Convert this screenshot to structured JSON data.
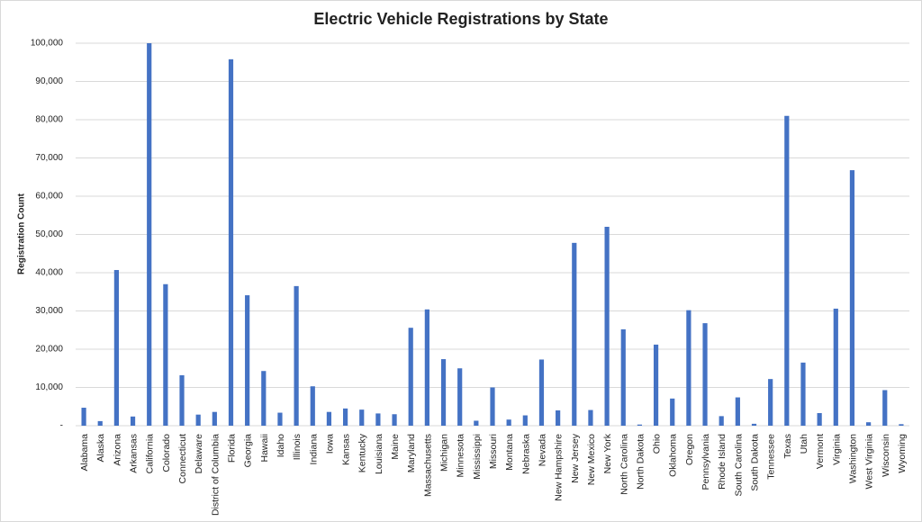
{
  "chart_data": {
    "type": "bar",
    "title": "Electric Vehicle Registrations by State",
    "y_label": "Registration Count",
    "categories": [
      "Alabama",
      "Alaska",
      "Arizona",
      "Arkansas",
      "California",
      "Colorado",
      "Connecticut",
      "Delaware",
      "District of Columbia",
      "Florida",
      "Georgia",
      "Hawaii",
      "Idaho",
      "Illinois",
      "Indiana",
      "Iowa",
      "Kansas",
      "Kentucky",
      "Louisiana",
      "Maine",
      "Maryland",
      "Massachusetts",
      "Michigan",
      "Minnesota",
      "Mississippi",
      "Missouri",
      "Montana",
      "Nebraska",
      "Nevada",
      "New Hampshire",
      "New Jersey",
      "New Mexico",
      "New York",
      "North Carolina",
      "North Dakota",
      "Ohio",
      "Oklahoma",
      "Oregon",
      "Pennsylvania",
      "Rhode Island",
      "South Carolina",
      "South Dakota",
      "Tennessee",
      "Texas",
      "Utah",
      "Vermont",
      "Virginia",
      "Washington",
      "West Virginia",
      "Wisconsin",
      "Wyoming"
    ],
    "values": [
      4700,
      1200,
      40700,
      2400,
      100000,
      37000,
      13200,
      2900,
      3600,
      95800,
      34100,
      14300,
      3400,
      36500,
      10300,
      3600,
      4500,
      4200,
      3200,
      3000,
      25600,
      30400,
      17400,
      15000,
      1300,
      10000,
      1600,
      2700,
      17300,
      4000,
      47800,
      4100,
      52000,
      25200,
      300,
      21200,
      7100,
      30200,
      26800,
      2500,
      7400,
      500,
      12200,
      81000,
      16500,
      3300,
      30600,
      66800,
      900,
      9300,
      400
    ],
    "color": "#4472c4",
    "ylim": [
      0,
      100000
    ],
    "yticks": [
      {
        "value": 0,
        "label": "-"
      },
      {
        "value": 10000,
        "label": "10,000"
      },
      {
        "value": 20000,
        "label": "20,000"
      },
      {
        "value": 30000,
        "label": "30,000"
      },
      {
        "value": 40000,
        "label": "40,000"
      },
      {
        "value": 50000,
        "label": "50,000"
      },
      {
        "value": 60000,
        "label": "60,000"
      },
      {
        "value": 70000,
        "label": "70,000"
      },
      {
        "value": 80000,
        "label": "80,000"
      },
      {
        "value": 90000,
        "label": "90,000"
      },
      {
        "value": 100000,
        "label": "100,000"
      }
    ],
    "grid": true
  }
}
